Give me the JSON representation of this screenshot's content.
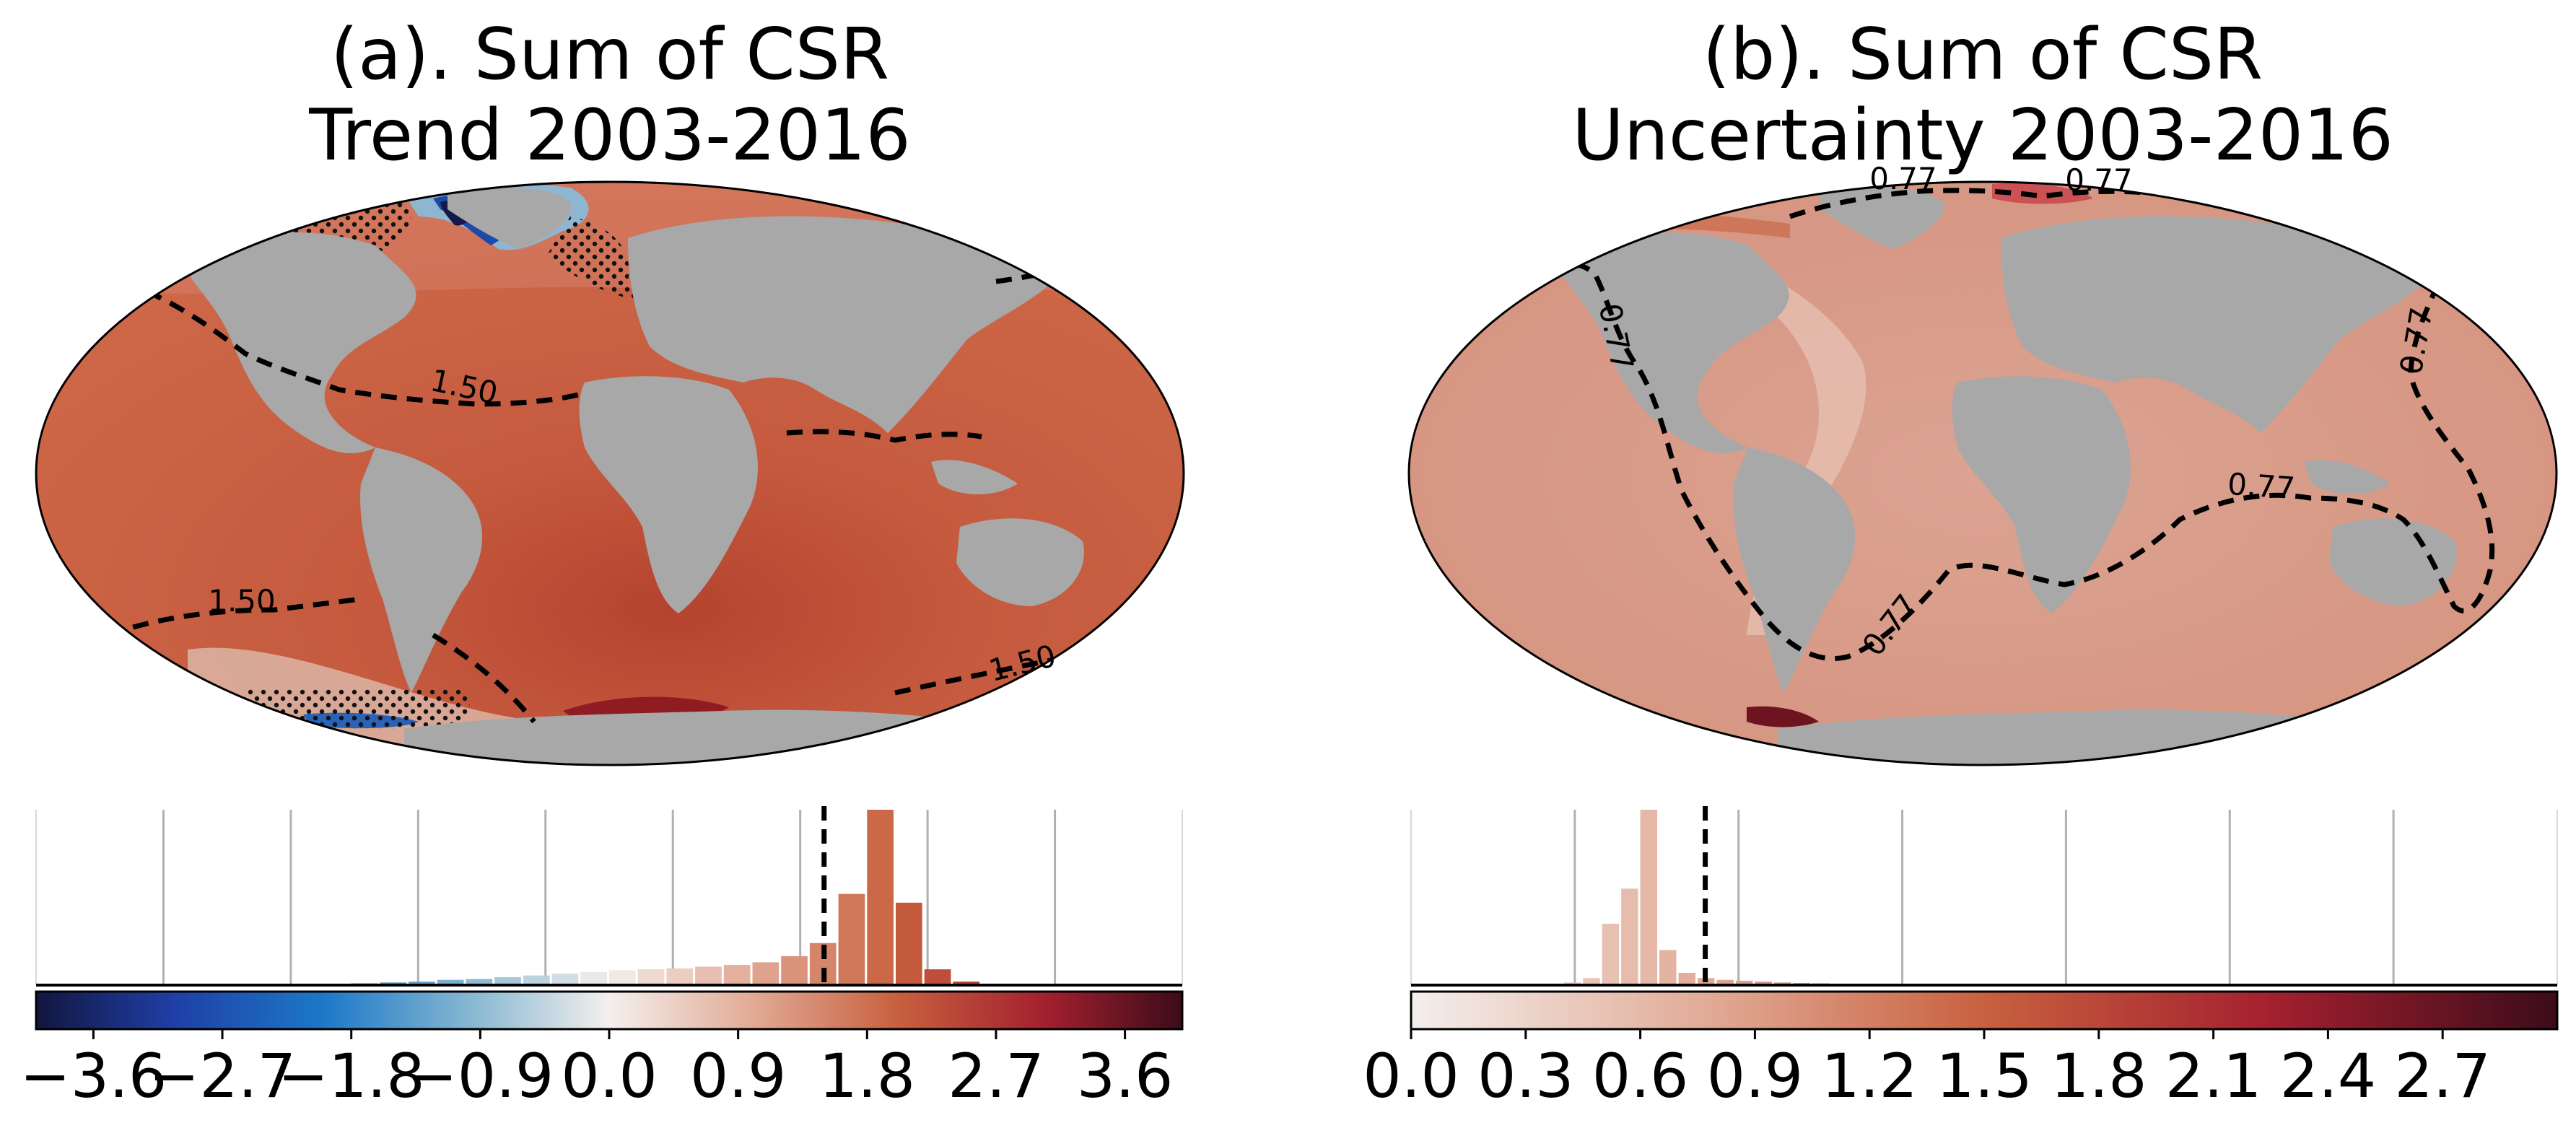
{
  "panels": [
    {
      "id": "a",
      "title_line1": "(a). Sum of CSR",
      "title_line2": "Trend 2003-2016",
      "contour_value": "1.50",
      "contour_label_count": 3,
      "stippling": "present",
      "colormap": "diverging blue-white-red",
      "colorbar_ticks": [
        "−3.6",
        "−2.7",
        "−1.8",
        "−0.9",
        "0.0",
        "0.9",
        "1.8",
        "2.7",
        "3.6"
      ],
      "colorbar_range": [
        -4.0,
        4.0
      ],
      "dashed_line_value": 1.5
    },
    {
      "id": "b",
      "title_line1": "(b). Sum of CSR",
      "title_line2": "Uncertainty 2003-2016",
      "contour_value": "0.77",
      "contour_label_count": 6,
      "stippling": "none",
      "colormap": "sequential white-red",
      "colorbar_ticks": [
        "0.0",
        "0.3",
        "0.6",
        "0.9",
        "1.2",
        "1.5",
        "1.8",
        "2.1",
        "2.4",
        "2.7"
      ],
      "colorbar_range": [
        0.0,
        3.0
      ],
      "dashed_line_value": 0.77
    }
  ],
  "chart_data": [
    {
      "type": "bar",
      "title": "(a). Sum of CSR Trend 2003-2016",
      "xlim": [
        -4.0,
        4.0
      ],
      "bin_width": 0.2,
      "bin_starts": [
        -2.0,
        -1.8,
        -1.6,
        -1.4,
        -1.2,
        -1.0,
        -0.8,
        -0.6,
        -0.4,
        -0.2,
        0.0,
        0.2,
        0.4,
        0.6,
        0.8,
        1.0,
        1.2,
        1.4,
        1.6,
        1.8,
        2.0,
        2.2,
        2.4
      ],
      "values": [
        0.005,
        0.01,
        0.015,
        0.02,
        0.03,
        0.035,
        0.045,
        0.055,
        0.065,
        0.075,
        0.085,
        0.09,
        0.095,
        0.105,
        0.115,
        0.13,
        0.165,
        0.24,
        0.52,
        1.0,
        0.47,
        0.09,
        0.02
      ],
      "dashed_line_x": 1.5,
      "grid": "vertical"
    },
    {
      "type": "bar",
      "title": "(b). Sum of CSR Uncertainty 2003-2016",
      "xlim": [
        0.0,
        3.0
      ],
      "bin_width": 0.05,
      "bin_starts": [
        0.4,
        0.45,
        0.5,
        0.55,
        0.6,
        0.65,
        0.7,
        0.75,
        0.8,
        0.85,
        0.9,
        0.95,
        1.0,
        1.05,
        1.1,
        1.15,
        1.2,
        1.25,
        1.3,
        1.35,
        1.4,
        1.45
      ],
      "values": [
        0.015,
        0.04,
        0.35,
        0.55,
        1.0,
        0.2,
        0.07,
        0.04,
        0.03,
        0.025,
        0.02,
        0.015,
        0.012,
        0.01,
        0.008,
        0.006,
        0.005,
        0.004,
        0.003,
        0.003,
        0.002,
        0.002
      ],
      "dashed_line_x": 0.77,
      "grid": "vertical"
    }
  ]
}
